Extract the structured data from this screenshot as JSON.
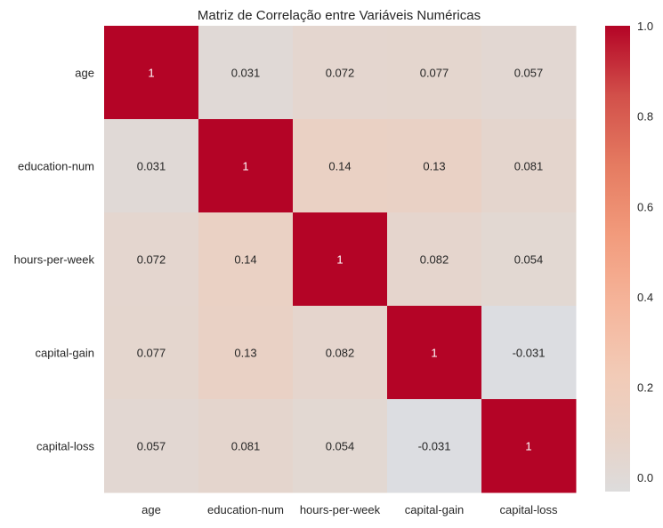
{
  "chart_data": {
    "type": "heatmap",
    "title": "Matriz de Correlação entre Variáveis Numéricas",
    "xlabel": "",
    "ylabel": "",
    "x_categories": [
      "age",
      "education-num",
      "hours-per-week",
      "capital-gain",
      "capital-loss"
    ],
    "y_categories": [
      "age",
      "education-num",
      "hours-per-week",
      "capital-gain",
      "capital-loss"
    ],
    "matrix": [
      [
        1,
        0.031,
        0.072,
        0.077,
        0.057
      ],
      [
        0.031,
        1,
        0.14,
        0.13,
        0.081
      ],
      [
        0.072,
        0.14,
        1,
        0.082,
        0.054
      ],
      [
        0.077,
        0.13,
        0.082,
        1,
        -0.031
      ],
      [
        0.057,
        0.081,
        0.054,
        -0.031,
        1
      ]
    ],
    "annotations": [
      [
        "1",
        "0.031",
        "0.072",
        "0.077",
        "0.057"
      ],
      [
        "0.031",
        "1",
        "0.14",
        "0.13",
        "0.081"
      ],
      [
        "0.072",
        "0.14",
        "1",
        "0.082",
        "0.054"
      ],
      [
        "0.077",
        "0.13",
        "0.082",
        "1",
        "-0.031"
      ],
      [
        "0.057",
        "0.081",
        "0.054",
        "-0.031",
        "1"
      ]
    ],
    "colormap": "coolwarm",
    "vmin": -0.031,
    "vmax": 1.0,
    "center": 0,
    "colorbar": {
      "ticks": [
        0.0,
        0.2,
        0.4,
        0.6,
        0.8,
        1.0
      ],
      "tick_labels": [
        "0.0",
        "0.2",
        "0.4",
        "0.6",
        "0.8",
        "1.0"
      ],
      "placement": "right"
    },
    "grid": false
  }
}
